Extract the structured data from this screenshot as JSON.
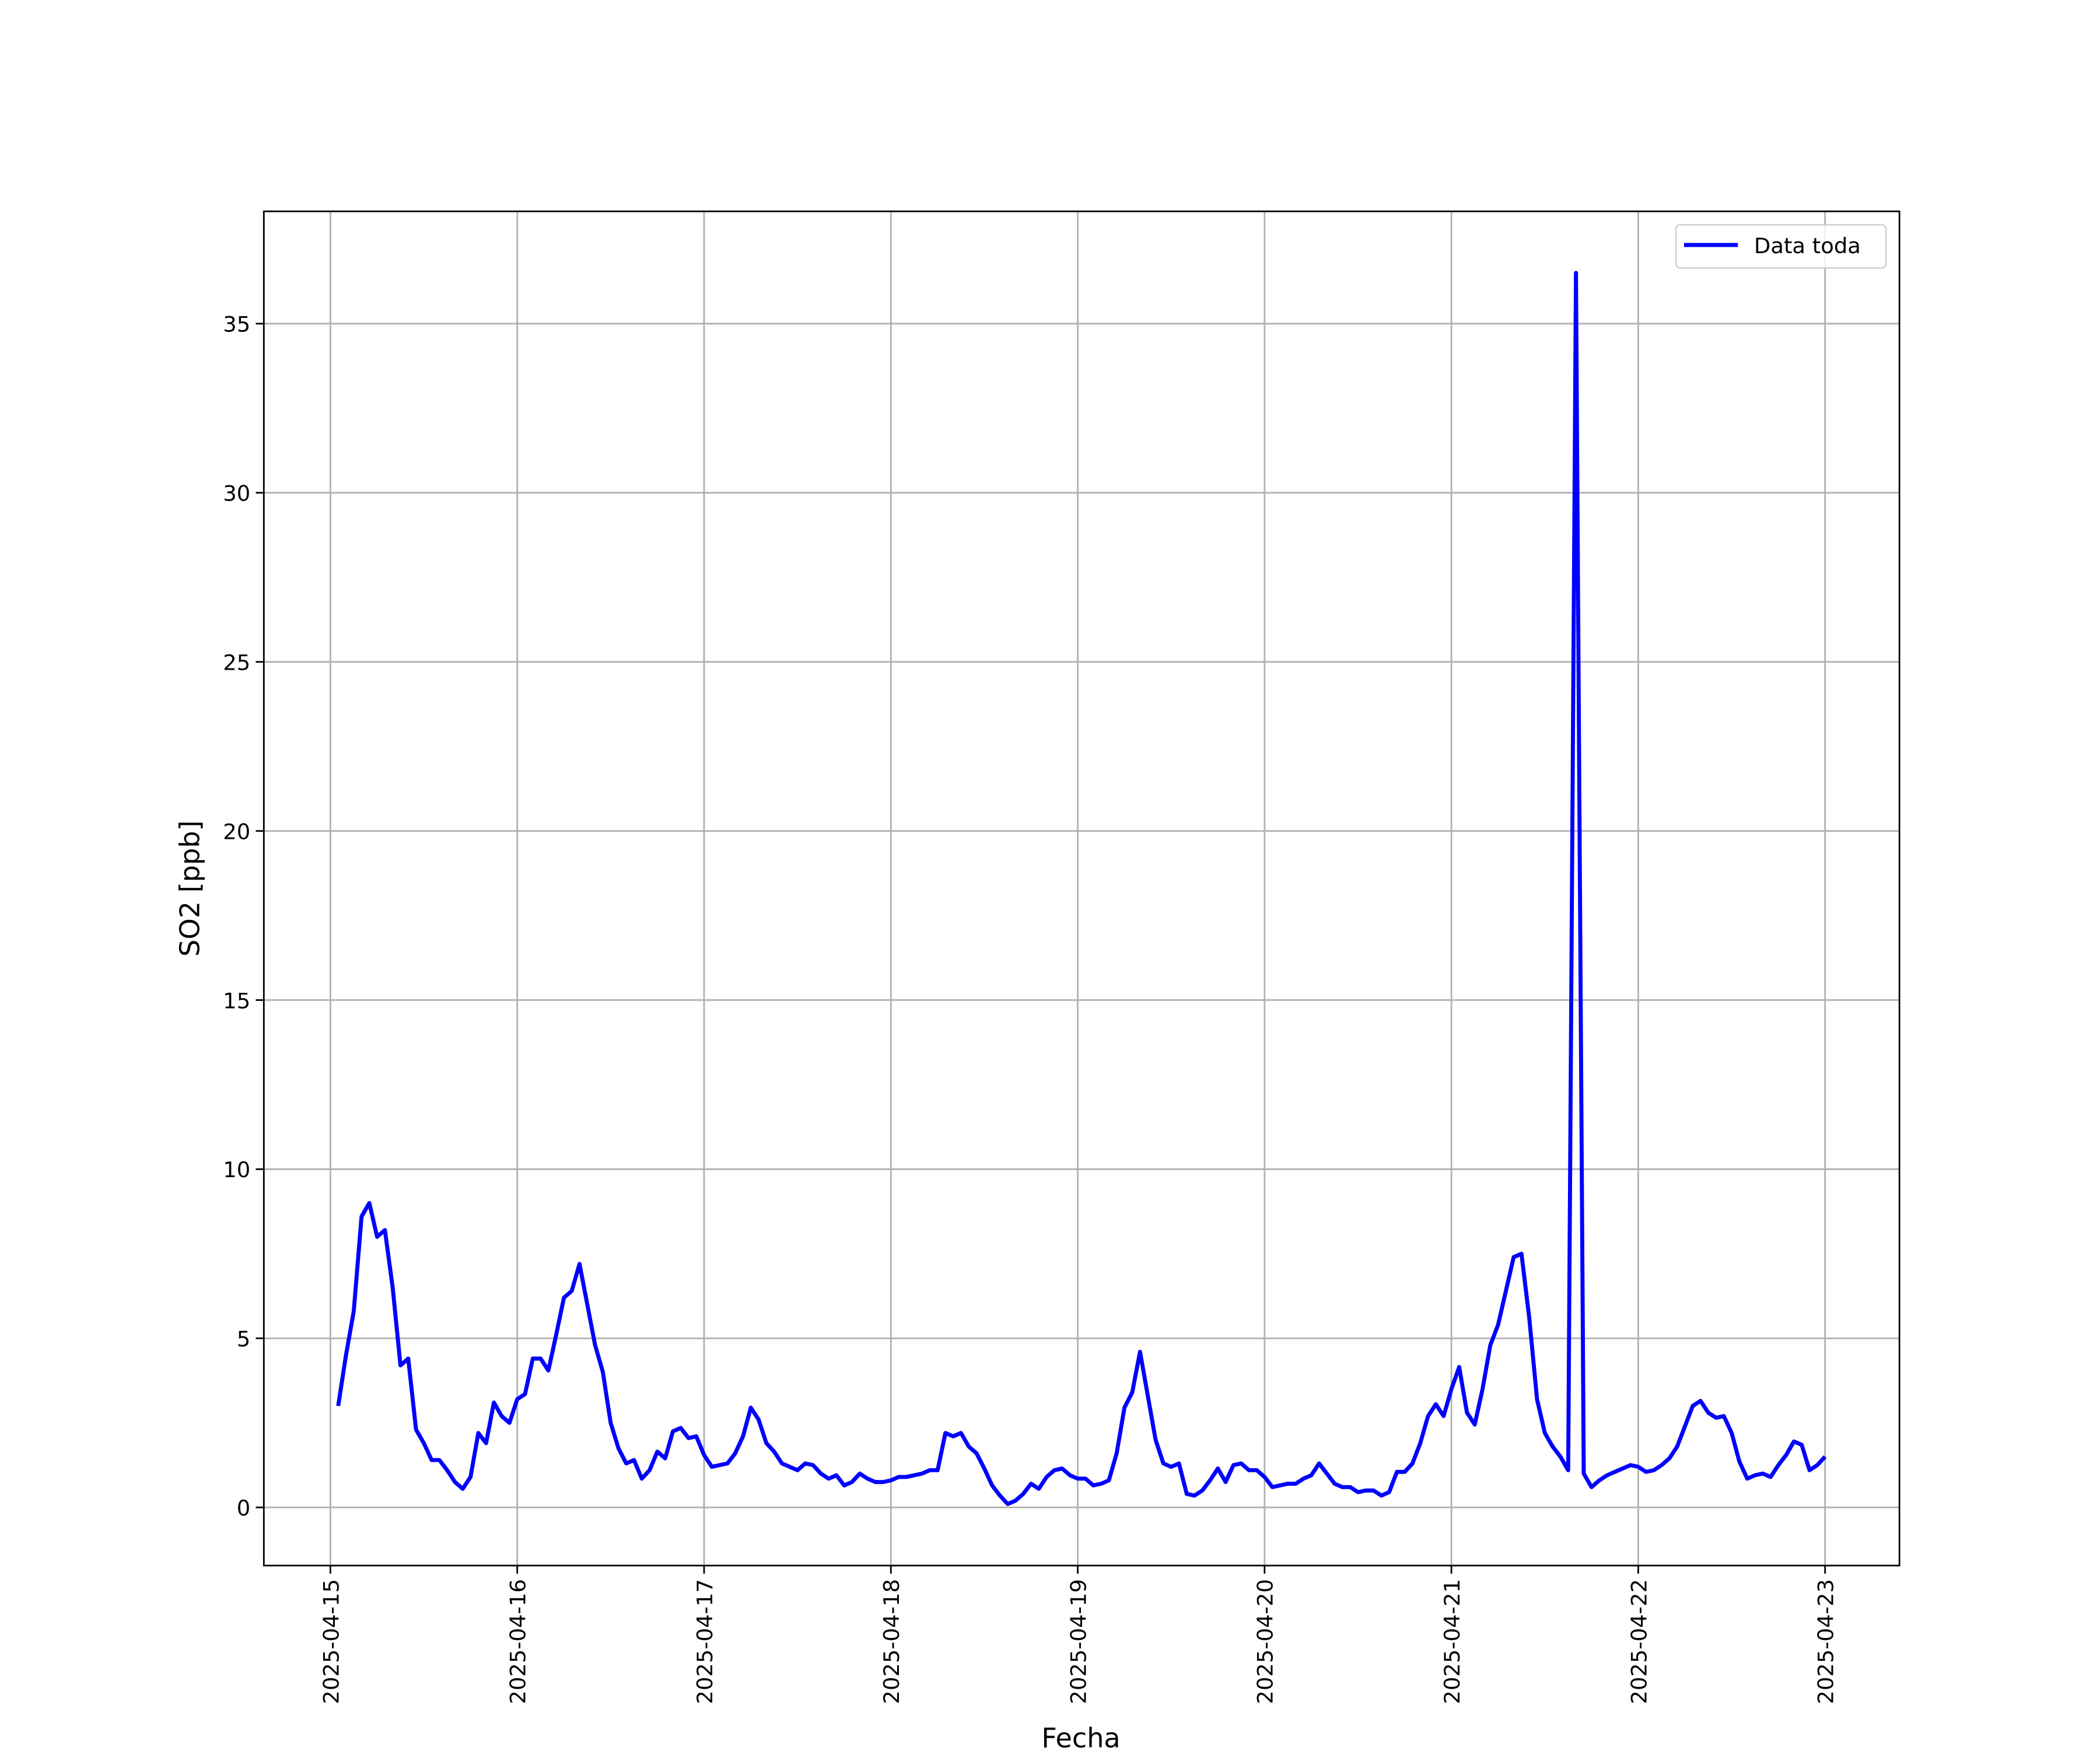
{
  "chart_data": {
    "type": "line",
    "xlabel": "Fecha",
    "ylabel": "SO2 [ppb]",
    "x": [
      "2025-04-15 01:00",
      "2025-04-15 02:00",
      "2025-04-15 03:00",
      "2025-04-15 04:00",
      "2025-04-15 05:00",
      "2025-04-15 06:00",
      "2025-04-15 07:00",
      "2025-04-15 08:00",
      "2025-04-15 09:00",
      "2025-04-15 10:00",
      "2025-04-15 11:00",
      "2025-04-15 12:00",
      "2025-04-15 13:00",
      "2025-04-15 14:00",
      "2025-04-15 15:00",
      "2025-04-15 16:00",
      "2025-04-15 17:00",
      "2025-04-15 18:00",
      "2025-04-15 19:00",
      "2025-04-15 20:00",
      "2025-04-15 21:00",
      "2025-04-15 22:00",
      "2025-04-15 23:00",
      "2025-04-16 00:00",
      "2025-04-16 01:00",
      "2025-04-16 02:00",
      "2025-04-16 03:00",
      "2025-04-16 04:00",
      "2025-04-16 05:00",
      "2025-04-16 06:00",
      "2025-04-16 07:00",
      "2025-04-16 08:00",
      "2025-04-16 09:00",
      "2025-04-16 10:00",
      "2025-04-16 11:00",
      "2025-04-16 12:00",
      "2025-04-16 13:00",
      "2025-04-16 14:00",
      "2025-04-16 15:00",
      "2025-04-16 16:00",
      "2025-04-16 17:00",
      "2025-04-16 18:00",
      "2025-04-16 19:00",
      "2025-04-16 20:00",
      "2025-04-16 21:00",
      "2025-04-16 22:00",
      "2025-04-16 23:00",
      "2025-04-17 00:00",
      "2025-04-17 01:00",
      "2025-04-17 02:00",
      "2025-04-17 03:00",
      "2025-04-17 04:00",
      "2025-04-17 05:00",
      "2025-04-17 06:00",
      "2025-04-17 07:00",
      "2025-04-17 08:00",
      "2025-04-17 09:00",
      "2025-04-17 10:00",
      "2025-04-17 11:00",
      "2025-04-17 12:00",
      "2025-04-17 13:00",
      "2025-04-17 14:00",
      "2025-04-17 15:00",
      "2025-04-17 16:00",
      "2025-04-17 17:00",
      "2025-04-17 18:00",
      "2025-04-17 19:00",
      "2025-04-17 20:00",
      "2025-04-17 21:00",
      "2025-04-17 22:00",
      "2025-04-17 23:00",
      "2025-04-18 00:00",
      "2025-04-18 01:00",
      "2025-04-18 02:00",
      "2025-04-18 03:00",
      "2025-04-18 04:00",
      "2025-04-18 05:00",
      "2025-04-18 06:00",
      "2025-04-18 07:00",
      "2025-04-18 08:00",
      "2025-04-18 09:00",
      "2025-04-18 10:00",
      "2025-04-18 11:00",
      "2025-04-18 12:00",
      "2025-04-18 13:00",
      "2025-04-18 14:00",
      "2025-04-18 15:00",
      "2025-04-18 16:00",
      "2025-04-18 17:00",
      "2025-04-18 18:00",
      "2025-04-18 19:00",
      "2025-04-18 20:00",
      "2025-04-18 21:00",
      "2025-04-18 22:00",
      "2025-04-18 23:00",
      "2025-04-19 00:00",
      "2025-04-19 01:00",
      "2025-04-19 02:00",
      "2025-04-19 03:00",
      "2025-04-19 04:00",
      "2025-04-19 05:00",
      "2025-04-19 06:00",
      "2025-04-19 07:00",
      "2025-04-19 08:00",
      "2025-04-19 09:00",
      "2025-04-19 10:00",
      "2025-04-19 11:00",
      "2025-04-19 12:00",
      "2025-04-19 13:00",
      "2025-04-19 14:00",
      "2025-04-19 15:00",
      "2025-04-19 16:00",
      "2025-04-19 17:00",
      "2025-04-19 18:00",
      "2025-04-19 19:00",
      "2025-04-19 20:00",
      "2025-04-19 21:00",
      "2025-04-19 22:00",
      "2025-04-19 23:00",
      "2025-04-20 00:00",
      "2025-04-20 01:00",
      "2025-04-20 02:00",
      "2025-04-20 03:00",
      "2025-04-20 04:00",
      "2025-04-20 05:00",
      "2025-04-20 06:00",
      "2025-04-20 07:00",
      "2025-04-20 08:00",
      "2025-04-20 09:00",
      "2025-04-20 10:00",
      "2025-04-20 11:00",
      "2025-04-20 12:00",
      "2025-04-20 13:00",
      "2025-04-20 14:00",
      "2025-04-20 15:00",
      "2025-04-20 16:00",
      "2025-04-20 17:00",
      "2025-04-20 18:00",
      "2025-04-20 19:00",
      "2025-04-20 20:00",
      "2025-04-20 21:00",
      "2025-04-20 22:00",
      "2025-04-20 23:00",
      "2025-04-21 00:00",
      "2025-04-21 01:00",
      "2025-04-21 02:00",
      "2025-04-21 03:00",
      "2025-04-21 04:00",
      "2025-04-21 05:00",
      "2025-04-21 06:00",
      "2025-04-21 07:00",
      "2025-04-21 08:00",
      "2025-04-21 09:00",
      "2025-04-21 10:00",
      "2025-04-21 11:00",
      "2025-04-21 12:00",
      "2025-04-21 13:00",
      "2025-04-21 14:00",
      "2025-04-21 15:00",
      "2025-04-21 16:00",
      "2025-04-21 17:00",
      "2025-04-21 18:00",
      "2025-04-21 19:00",
      "2025-04-21 20:00",
      "2025-04-21 21:00",
      "2025-04-21 22:00",
      "2025-04-21 23:00",
      "2025-04-22 00:00",
      "2025-04-22 01:00",
      "2025-04-22 02:00",
      "2025-04-22 03:00",
      "2025-04-22 04:00",
      "2025-04-22 05:00",
      "2025-04-22 06:00",
      "2025-04-22 07:00",
      "2025-04-22 08:00",
      "2025-04-22 09:00",
      "2025-04-22 10:00",
      "2025-04-22 11:00",
      "2025-04-22 12:00",
      "2025-04-22 13:00",
      "2025-04-22 14:00",
      "2025-04-22 15:00",
      "2025-04-22 16:00",
      "2025-04-22 17:00",
      "2025-04-22 18:00",
      "2025-04-22 19:00",
      "2025-04-22 20:00",
      "2025-04-22 21:00",
      "2025-04-22 22:00",
      "2025-04-22 23:00",
      "2025-04-23 00:00"
    ],
    "series": [
      {
        "name": "Data toda",
        "color": "#0000ff",
        "values": [
          3.0,
          4.5,
          5.8,
          8.6,
          9.0,
          8.0,
          8.2,
          6.5,
          4.2,
          4.4,
          2.3,
          1.9,
          1.4,
          1.4,
          1.1,
          0.75,
          0.55,
          0.9,
          2.2,
          1.9,
          3.1,
          2.7,
          2.5,
          3.2,
          3.35,
          4.4,
          4.4,
          4.05,
          5.1,
          6.2,
          6.4,
          7.2,
          6.0,
          4.8,
          4.0,
          2.5,
          1.75,
          1.3,
          1.4,
          0.85,
          1.1,
          1.65,
          1.45,
          2.25,
          2.35,
          2.05,
          2.1,
          1.55,
          1.2,
          1.25,
          1.3,
          1.6,
          2.1,
          2.95,
          2.6,
          1.9,
          1.65,
          1.3,
          1.2,
          1.1,
          1.3,
          1.25,
          1.0,
          0.85,
          0.95,
          0.65,
          0.75,
          1.0,
          0.85,
          0.75,
          0.75,
          0.8,
          0.9,
          0.9,
          0.95,
          1.0,
          1.1,
          1.1,
          2.2,
          2.1,
          2.2,
          1.8,
          1.6,
          1.15,
          0.65,
          0.35,
          0.1,
          0.2,
          0.4,
          0.7,
          0.55,
          0.9,
          1.1,
          1.15,
          0.95,
          0.85,
          0.85,
          0.65,
          0.7,
          0.8,
          1.6,
          2.95,
          3.4,
          4.6,
          3.3,
          2.0,
          1.3,
          1.2,
          1.3,
          0.4,
          0.35,
          0.5,
          0.8,
          1.15,
          0.75,
          1.25,
          1.3,
          1.1,
          1.1,
          0.9,
          0.6,
          0.65,
          0.7,
          0.7,
          0.85,
          0.95,
          1.3,
          1.0,
          0.7,
          0.6,
          0.6,
          0.45,
          0.5,
          0.5,
          0.35,
          0.45,
          1.05,
          1.05,
          1.3,
          1.9,
          2.7,
          3.05,
          2.7,
          3.5,
          4.15,
          2.8,
          2.45,
          3.5,
          4.8,
          5.4,
          6.4,
          7.4,
          7.5,
          5.6,
          3.2,
          2.2,
          1.8,
          1.5,
          1.1,
          36.5,
          1.0,
          0.6,
          0.8,
          0.95,
          1.05,
          1.15,
          1.25,
          1.2,
          1.05,
          1.1,
          1.25,
          1.45,
          1.8,
          2.4,
          3.0,
          3.15,
          2.8,
          2.65,
          2.7,
          2.2,
          1.35,
          0.85,
          0.95,
          1.0,
          0.9,
          1.25,
          1.55,
          1.95,
          1.85,
          1.1,
          1.25,
          1.5
        ]
      }
    ],
    "ylim": [
      -1.72,
      38.32
    ],
    "yticks": [
      0,
      5,
      10,
      15,
      20,
      25,
      30,
      35
    ],
    "xticks": [
      "2025-04-15",
      "2025-04-16",
      "2025-04-17",
      "2025-04-18",
      "2025-04-19",
      "2025-04-20",
      "2025-04-21",
      "2025-04-22",
      "2025-04-23"
    ],
    "grid": true,
    "legend": "upper right"
  }
}
